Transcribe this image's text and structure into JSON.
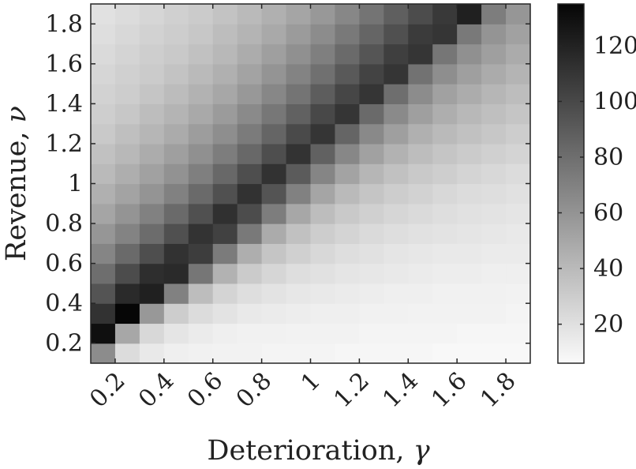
{
  "chart_data": {
    "type": "heatmap",
    "xlabel": "Deterioration,",
    "xlabel_symbol": "γ",
    "ylabel": "Revenue,",
    "ylabel_symbol": "ν",
    "x": [
      0.15,
      0.25,
      0.35,
      0.45,
      0.55,
      0.65,
      0.75,
      0.85,
      0.95,
      1.05,
      1.15,
      1.25,
      1.35,
      1.45,
      1.55,
      1.65,
      1.75,
      1.85
    ],
    "y": [
      0.15,
      0.25,
      0.35,
      0.45,
      0.55,
      0.65,
      0.75,
      0.85,
      0.95,
      1.05,
      1.15,
      1.25,
      1.35,
      1.45,
      1.55,
      1.65,
      1.75,
      1.85
    ],
    "xlim": [
      0.1,
      1.9
    ],
    "ylim": [
      0.1,
      1.9
    ],
    "x_ticks": [
      0.2,
      0.4,
      0.6,
      0.8,
      1,
      1.2,
      1.4,
      1.6,
      1.8
    ],
    "x_tick_labels": [
      "0.2",
      "0.4",
      "0.6",
      "0.8",
      "1",
      "1.2",
      "1.4",
      "1.6",
      "1.8"
    ],
    "y_ticks": [
      0.2,
      0.4,
      0.6,
      0.8,
      1,
      1.2,
      1.4,
      1.6,
      1.8
    ],
    "y_tick_labels": [
      "0.2",
      "0.4",
      "0.6",
      "0.8",
      "1",
      "1.2",
      "1.4",
      "1.6",
      "1.8"
    ],
    "colorbar": {
      "min": 6,
      "max": 135,
      "ticks": [
        20,
        40,
        60,
        80,
        100,
        120
      ],
      "tick_labels": [
        "20",
        "40",
        "60",
        "80",
        "100",
        "120"
      ],
      "colormap": "gray-reversed"
    },
    "grid": false,
    "values": [
      [
        64,
        22,
        15,
        12,
        11,
        10,
        10,
        9,
        9,
        9,
        8,
        8,
        8,
        8,
        7,
        7,
        7,
        7
      ],
      [
        130,
        50,
        24,
        17,
        14,
        12,
        11,
        11,
        10,
        10,
        10,
        9,
        9,
        9,
        9,
        8,
        8,
        8
      ],
      [
        112,
        135,
        58,
        30,
        22,
        18,
        15,
        14,
        13,
        12,
        12,
        11,
        11,
        10,
        10,
        10,
        10,
        9
      ],
      [
        94,
        116,
        121,
        70,
        38,
        26,
        21,
        18,
        16,
        15,
        14,
        13,
        12,
        12,
        11,
        11,
        11,
        10
      ],
      [
        80,
        98,
        114,
        116,
        76,
        44,
        31,
        25,
        21,
        19,
        17,
        16,
        15,
        14,
        13,
        13,
        12,
        12
      ],
      [
        68,
        82,
        97,
        112,
        106,
        73,
        46,
        34,
        28,
        24,
        21,
        19,
        17,
        16,
        15,
        15,
        14,
        14
      ],
      [
        59,
        69,
        81,
        96,
        111,
        104,
        74,
        48,
        36,
        30,
        26,
        23,
        21,
        19,
        18,
        17,
        16,
        15
      ],
      [
        51,
        60,
        70,
        82,
        96,
        113,
        98,
        72,
        50,
        38,
        32,
        28,
        25,
        23,
        21,
        19,
        18,
        17
      ],
      [
        45,
        52,
        60,
        70,
        82,
        96,
        112,
        94,
        70,
        51,
        40,
        34,
        30,
        27,
        24,
        22,
        21,
        19
      ],
      [
        40,
        46,
        53,
        61,
        71,
        83,
        97,
        112,
        90,
        68,
        52,
        42,
        36,
        32,
        29,
        26,
        24,
        22
      ],
      [
        36,
        41,
        47,
        54,
        62,
        72,
        83,
        97,
        111,
        87,
        67,
        53,
        44,
        38,
        34,
        31,
        28,
        26
      ],
      [
        32,
        37,
        42,
        48,
        55,
        63,
        73,
        85,
        99,
        110,
        85,
        66,
        54,
        45,
        40,
        36,
        33,
        30
      ],
      [
        29,
        33,
        38,
        43,
        49,
        56,
        65,
        75,
        87,
        100,
        110,
        82,
        65,
        54,
        46,
        41,
        37,
        34
      ],
      [
        27,
        30,
        34,
        39,
        44,
        50,
        58,
        67,
        77,
        89,
        101,
        110,
        80,
        64,
        53,
        47,
        42,
        38
      ],
      [
        25,
        28,
        31,
        35,
        40,
        45,
        52,
        60,
        69,
        79,
        91,
        103,
        110,
        78,
        63,
        54,
        48,
        43
      ],
      [
        23,
        26,
        29,
        32,
        36,
        41,
        47,
        54,
        62,
        71,
        82,
        93,
        105,
        110,
        76,
        62,
        54,
        48
      ],
      [
        21,
        24,
        27,
        30,
        33,
        38,
        43,
        49,
        56,
        64,
        74,
        85,
        96,
        107,
        110,
        74,
        60,
        53
      ],
      [
        19,
        22,
        25,
        28,
        31,
        35,
        40,
        45,
        51,
        58,
        67,
        77,
        88,
        98,
        108,
        121,
        72,
        59
      ]
    ]
  }
}
